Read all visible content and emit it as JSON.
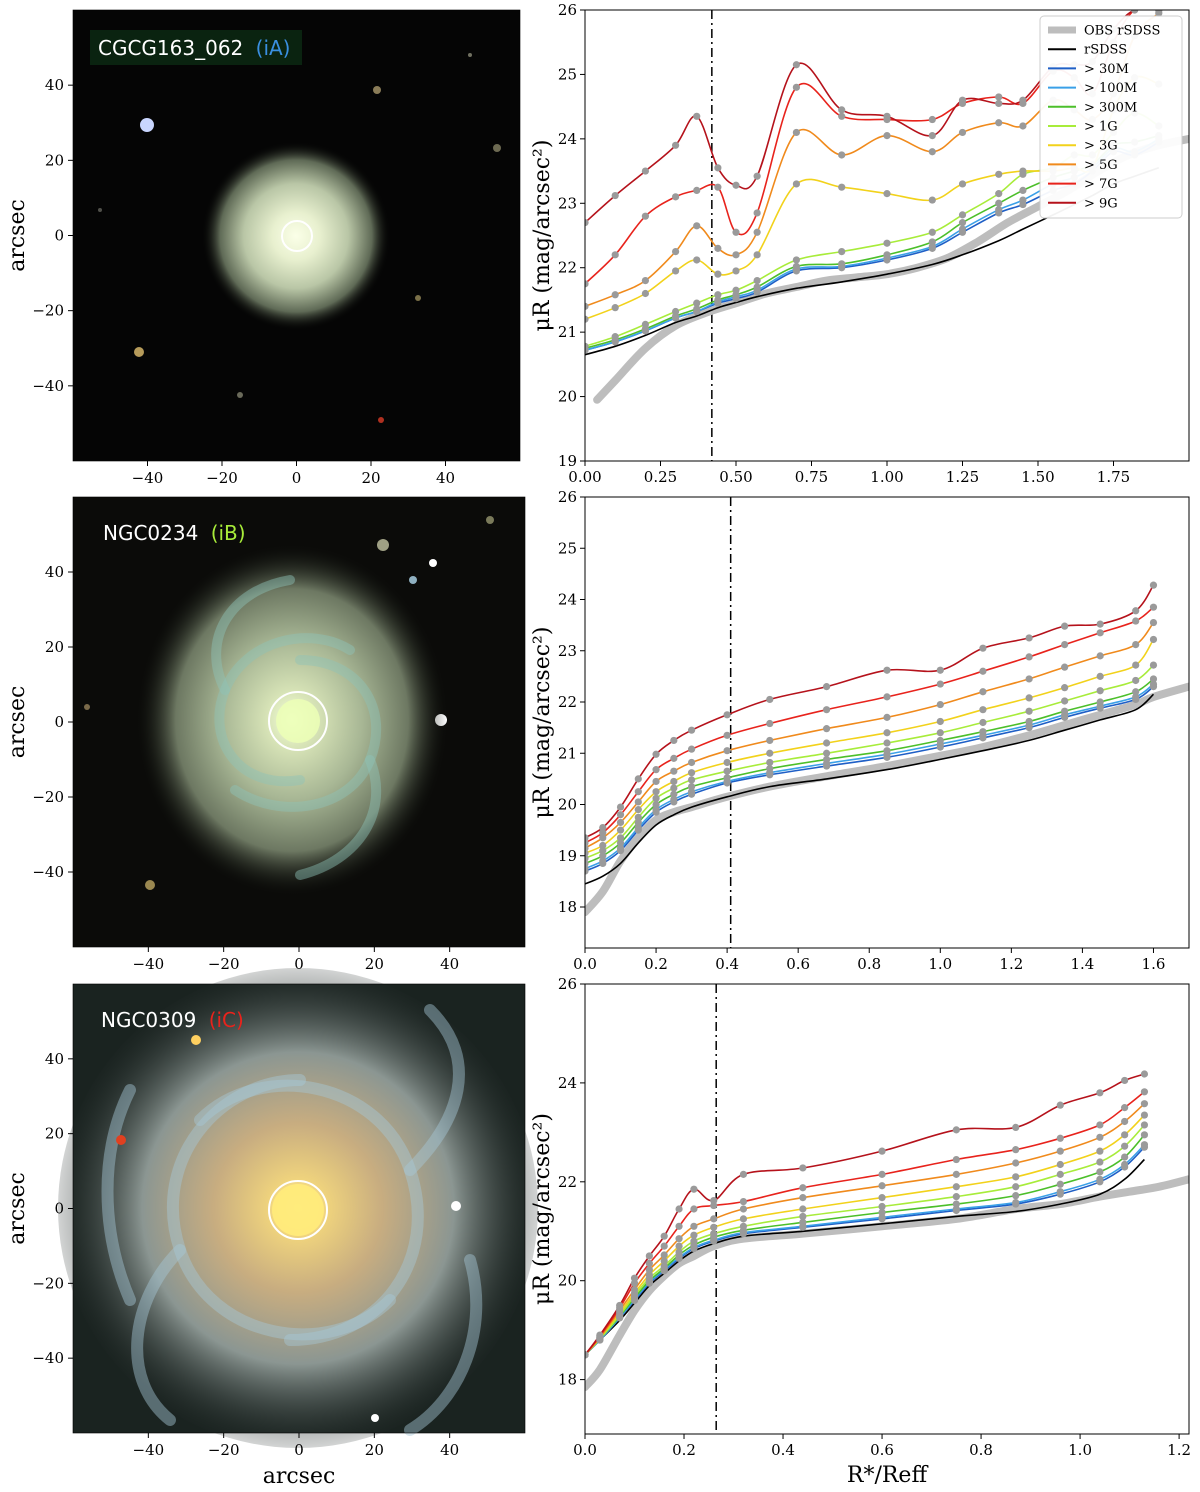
{
  "colors": {
    "obs": "#bdbdbd",
    "rSDSS": "#000000",
    "gt30M": "#1f5fc6",
    "gt100M": "#3aa0e8",
    "gt300M": "#4cbf2a",
    "gt1G": "#a8ec3a",
    "gt3G": "#f2d21b",
    "gt5G": "#f08a1c",
    "gt7G": "#e8231c",
    "gt9G": "#b5121b",
    "marker": "#9a9a9a",
    "vline": "#000000"
  },
  "legend": {
    "entries": [
      {
        "key": "obs",
        "label": "OBS rSDSS"
      },
      {
        "key": "rSDSS",
        "label": "rSDSS"
      },
      {
        "key": "gt30M",
        "label": "> 30M"
      },
      {
        "key": "gt100M",
        "label": "> 100M"
      },
      {
        "key": "gt300M",
        "label": "> 300M"
      },
      {
        "key": "gt1G",
        "label": "> 1G"
      },
      {
        "key": "gt3G",
        "label": "> 3G"
      },
      {
        "key": "gt5G",
        "label": "> 5G"
      },
      {
        "key": "gt7G",
        "label": "> 7G"
      },
      {
        "key": "gt9G",
        "label": "> 9G"
      }
    ]
  },
  "images": [
    {
      "name": "CGCG163_062",
      "tag": "(iA)",
      "tag_color": "#3a8fe0",
      "type": "elliptical",
      "circle_radius_arcsec": 7,
      "xlabel": "",
      "ylabel": "arcsec",
      "ticks": [
        "−40",
        "−20",
        "0",
        "20",
        "40"
      ]
    },
    {
      "name": "NGC0234",
      "tag": "(iB)",
      "tag_color": "#a8ec3a",
      "type": "spiral",
      "circle_radius_arcsec": 15,
      "xlabel": "",
      "ylabel": "arcsec",
      "ticks": [
        "−40",
        "−20",
        "0",
        "20",
        "40"
      ]
    },
    {
      "name": "NGC0309",
      "tag": "(iC)",
      "tag_color": "#e8231c",
      "type": "spiral-bright",
      "circle_radius_arcsec": 15,
      "xlabel": "arcsec",
      "ylabel": "arcsec",
      "ticks": [
        "−40",
        "−20",
        "0",
        "20",
        "40"
      ]
    }
  ],
  "chart_data": [
    {
      "type": "line",
      "xlabel": "",
      "ylabel": "μR (mag/arcsec²)",
      "xlim": [
        0.0,
        2.0
      ],
      "ylim": [
        26,
        19
      ],
      "xticks": [
        "0.00",
        "0.25",
        "0.50",
        "0.75",
        "1.00",
        "1.25",
        "1.50",
        "1.75"
      ],
      "xtick_values": [
        0,
        0.25,
        0.5,
        0.75,
        1.0,
        1.25,
        1.5,
        1.75
      ],
      "yticks": [
        "19",
        "20",
        "21",
        "22",
        "23",
        "24",
        "25",
        "26"
      ],
      "ytick_values": [
        19,
        20,
        21,
        22,
        23,
        24,
        25,
        26
      ],
      "vline_x": 0.42,
      "x": [
        0.0,
        0.1,
        0.2,
        0.3,
        0.37,
        0.44,
        0.5,
        0.57,
        0.7,
        0.85,
        1.0,
        1.15,
        1.25,
        1.37,
        1.45,
        1.55,
        1.62,
        1.68,
        1.75,
        1.82,
        1.9
      ],
      "obs": {
        "x": [
          0.04,
          0.1,
          0.2,
          0.3,
          0.4,
          0.5,
          0.6,
          0.7,
          0.8,
          0.9,
          1.0,
          1.1,
          1.2,
          1.3,
          1.4,
          1.5,
          1.6,
          1.7,
          1.8,
          1.9,
          2.0
        ],
        "y": [
          19.95,
          20.25,
          20.75,
          21.1,
          21.3,
          21.45,
          21.6,
          21.7,
          21.8,
          21.85,
          21.9,
          22.0,
          22.15,
          22.4,
          22.7,
          22.95,
          23.2,
          23.5,
          23.75,
          23.9,
          24.0
        ]
      },
      "series": [
        {
          "key": "rSDSS",
          "y": [
            20.65,
            20.78,
            20.95,
            21.15,
            21.25,
            21.38,
            21.46,
            21.55,
            21.68,
            21.78,
            21.9,
            22.05,
            22.2,
            22.42,
            22.6,
            22.82,
            22.98,
            23.12,
            23.3,
            23.42,
            23.55
          ]
        },
        {
          "key": "gt30M",
          "y": [
            20.72,
            20.85,
            21.02,
            21.22,
            21.32,
            21.45,
            21.52,
            21.62,
            21.95,
            22.0,
            22.12,
            22.3,
            22.55,
            22.85,
            22.98,
            23.2,
            23.3,
            23.5,
            23.8,
            23.75,
            23.95
          ]
        },
        {
          "key": "gt100M",
          "y": [
            20.72,
            20.85,
            21.02,
            21.22,
            21.32,
            21.47,
            21.55,
            21.65,
            21.98,
            22.02,
            22.15,
            22.33,
            22.6,
            22.9,
            23.05,
            23.3,
            23.4,
            23.55,
            23.85,
            23.8,
            24.0
          ]
        },
        {
          "key": "gt300M",
          "y": [
            20.75,
            20.88,
            21.05,
            21.25,
            21.36,
            21.5,
            21.58,
            21.7,
            22.02,
            22.06,
            22.2,
            22.4,
            22.7,
            23.0,
            23.2,
            23.4,
            23.5,
            23.6,
            23.9,
            23.95,
            24.05
          ]
        },
        {
          "key": "gt1G",
          "y": [
            20.78,
            20.93,
            21.12,
            21.32,
            21.45,
            21.58,
            21.65,
            21.8,
            22.12,
            22.25,
            22.38,
            22.55,
            22.82,
            23.15,
            23.45,
            23.55,
            23.75,
            23.75,
            24.1,
            24.4,
            24.2
          ]
        },
        {
          "key": "gt3G",
          "y": [
            21.2,
            21.38,
            21.6,
            21.95,
            22.12,
            21.9,
            21.95,
            22.2,
            23.3,
            23.25,
            23.15,
            23.05,
            23.3,
            23.45,
            23.5,
            23.5,
            23.55,
            23.55,
            24.45,
            24.95,
            24.85
          ]
        },
        {
          "key": "gt5G",
          "y": [
            21.4,
            21.58,
            21.8,
            22.25,
            22.65,
            22.3,
            22.2,
            22.55,
            24.1,
            23.75,
            24.05,
            23.8,
            24.1,
            24.25,
            24.2,
            24.6,
            24.45,
            24.3,
            24.7,
            25.6,
            25.95
          ]
        },
        {
          "key": "gt7G",
          "y": [
            21.75,
            22.2,
            22.8,
            23.1,
            23.2,
            23.25,
            22.55,
            22.85,
            24.8,
            24.35,
            24.3,
            24.3,
            24.55,
            24.65,
            24.55,
            25.05,
            24.95,
            24.7,
            25.5,
            26.0,
            26.0
          ]
        },
        {
          "key": "gt9G",
          "y": [
            22.7,
            23.12,
            23.5,
            23.9,
            24.35,
            23.55,
            23.28,
            23.42,
            25.15,
            24.45,
            24.35,
            24.05,
            24.6,
            24.55,
            24.6,
            25.12,
            25.15,
            25.2,
            25.7,
            26.0,
            26.0
          ]
        }
      ]
    },
    {
      "type": "line",
      "xlabel": "",
      "ylabel": "μR (mag/arcsec²)",
      "xlim": [
        0.0,
        1.7
      ],
      "ylim": [
        26,
        17.2
      ],
      "xticks": [
        "0.0",
        "0.2",
        "0.4",
        "0.6",
        "0.8",
        "1.0",
        "1.2",
        "1.4",
        "1.6"
      ],
      "xtick_values": [
        0,
        0.2,
        0.4,
        0.6,
        0.8,
        1.0,
        1.2,
        1.4,
        1.6
      ],
      "yticks": [
        "18",
        "19",
        "20",
        "21",
        "22",
        "23",
        "24",
        "25",
        "26"
      ],
      "ytick_values": [
        18,
        19,
        20,
        21,
        22,
        23,
        24,
        25,
        26
      ],
      "vline_x": 0.41,
      "x": [
        0.0,
        0.05,
        0.1,
        0.15,
        0.2,
        0.25,
        0.3,
        0.4,
        0.52,
        0.68,
        0.85,
        1.0,
        1.12,
        1.25,
        1.35,
        1.45,
        1.55,
        1.6
      ],
      "obs": {
        "x": [
          0.0,
          0.05,
          0.1,
          0.15,
          0.2,
          0.25,
          0.3,
          0.4,
          0.52,
          0.68,
          0.85,
          1.0,
          1.12,
          1.25,
          1.35,
          1.45,
          1.55,
          1.6,
          1.7
        ],
        "y": [
          17.9,
          18.3,
          18.9,
          19.35,
          19.7,
          19.85,
          19.95,
          20.15,
          20.35,
          20.55,
          20.75,
          20.95,
          21.12,
          21.35,
          21.55,
          21.75,
          21.95,
          22.1,
          22.3
        ]
      },
      "series": [
        {
          "key": "rSDSS",
          "y": [
            18.45,
            18.6,
            18.85,
            19.25,
            19.6,
            19.8,
            19.95,
            20.15,
            20.35,
            20.5,
            20.68,
            20.88,
            21.05,
            21.25,
            21.45,
            21.65,
            21.85,
            22.15
          ]
        },
        {
          "key": "gt30M",
          "y": [
            18.7,
            18.85,
            19.1,
            19.5,
            19.85,
            20.05,
            20.2,
            20.42,
            20.58,
            20.75,
            20.92,
            21.12,
            21.3,
            21.5,
            21.7,
            21.88,
            22.05,
            22.3
          ]
        },
        {
          "key": "gt100M",
          "y": [
            18.75,
            18.9,
            19.15,
            19.55,
            19.9,
            20.1,
            20.25,
            20.45,
            20.62,
            20.8,
            20.98,
            21.18,
            21.35,
            21.55,
            21.75,
            21.92,
            22.1,
            22.35
          ]
        },
        {
          "key": "gt300M",
          "y": [
            18.85,
            19.0,
            19.25,
            19.65,
            20.0,
            20.2,
            20.35,
            20.52,
            20.7,
            20.88,
            21.05,
            21.25,
            21.42,
            21.62,
            21.82,
            22.0,
            22.2,
            22.45
          ]
        },
        {
          "key": "gt1G",
          "y": [
            18.95,
            19.1,
            19.35,
            19.75,
            20.12,
            20.32,
            20.48,
            20.65,
            20.82,
            21.0,
            21.2,
            21.4,
            21.6,
            21.82,
            22.02,
            22.22,
            22.42,
            22.72
          ]
        },
        {
          "key": "gt3G",
          "y": [
            19.05,
            19.2,
            19.5,
            19.9,
            20.25,
            20.45,
            20.62,
            20.82,
            21.0,
            21.2,
            21.4,
            21.62,
            21.85,
            22.08,
            22.28,
            22.5,
            22.72,
            23.22
          ]
        },
        {
          "key": "gt5G",
          "y": [
            19.15,
            19.35,
            19.65,
            20.05,
            20.45,
            20.65,
            20.82,
            21.05,
            21.25,
            21.48,
            21.7,
            21.95,
            22.2,
            22.45,
            22.68,
            22.9,
            23.12,
            23.55
          ]
        },
        {
          "key": "gt7G",
          "y": [
            19.25,
            19.45,
            19.8,
            20.25,
            20.68,
            20.9,
            21.08,
            21.35,
            21.58,
            21.85,
            22.1,
            22.35,
            22.6,
            22.88,
            23.12,
            23.35,
            23.58,
            23.85
          ]
        },
        {
          "key": "gt9G",
          "y": [
            19.35,
            19.55,
            19.95,
            20.5,
            20.98,
            21.25,
            21.45,
            21.75,
            22.05,
            22.3,
            22.62,
            22.62,
            23.05,
            23.25,
            23.48,
            23.52,
            23.78,
            24.28
          ]
        }
      ]
    },
    {
      "type": "line",
      "xlabel": "R*/Reff",
      "ylabel": "μR (mag/arcsec²)",
      "xlim": [
        0.0,
        1.22
      ],
      "ylim": [
        26,
        16.9
      ],
      "xticks": [
        "0.0",
        "0.2",
        "0.4",
        "0.6",
        "0.8",
        "1.0",
        "1.2"
      ],
      "xtick_values": [
        0,
        0.2,
        0.4,
        0.6,
        0.8,
        1.0,
        1.2
      ],
      "yticks": [
        "18",
        "20",
        "22",
        "24",
        "26"
      ],
      "ytick_values": [
        18,
        20,
        22,
        24,
        26
      ],
      "vline_x": 0.265,
      "x": [
        0.0,
        0.03,
        0.07,
        0.1,
        0.13,
        0.16,
        0.19,
        0.22,
        0.26,
        0.32,
        0.44,
        0.6,
        0.75,
        0.87,
        0.96,
        1.04,
        1.09,
        1.13
      ],
      "obs": {
        "x": [
          0.0,
          0.03,
          0.07,
          0.1,
          0.13,
          0.16,
          0.19,
          0.22,
          0.26,
          0.32,
          0.44,
          0.6,
          0.75,
          0.87,
          0.96,
          1.04,
          1.1,
          1.16,
          1.22
        ],
        "y": [
          17.85,
          18.2,
          18.9,
          19.4,
          19.8,
          20.1,
          20.35,
          20.5,
          20.7,
          20.85,
          20.95,
          21.1,
          21.25,
          21.45,
          21.55,
          21.7,
          21.8,
          21.9,
          22.05
        ]
      },
      "series": [
        {
          "key": "rSDSS",
          "y": [
            18.5,
            18.8,
            19.2,
            19.55,
            19.9,
            20.15,
            20.4,
            20.6,
            20.75,
            20.9,
            21.0,
            21.15,
            21.3,
            21.4,
            21.55,
            21.75,
            22.05,
            22.45
          ]
        },
        {
          "key": "gt30M",
          "y": [
            18.5,
            18.8,
            19.25,
            19.6,
            19.95,
            20.2,
            20.45,
            20.65,
            20.8,
            20.95,
            21.08,
            21.25,
            21.42,
            21.55,
            21.75,
            22.0,
            22.3,
            22.7
          ]
        },
        {
          "key": "gt100M",
          "y": [
            18.5,
            18.8,
            19.25,
            19.62,
            19.97,
            20.22,
            20.47,
            20.67,
            20.82,
            20.97,
            21.1,
            21.28,
            21.45,
            21.58,
            21.8,
            22.05,
            22.35,
            22.75
          ]
        },
        {
          "key": "gt300M",
          "y": [
            18.5,
            18.82,
            19.28,
            19.65,
            20.0,
            20.25,
            20.52,
            20.72,
            20.88,
            21.02,
            21.18,
            21.38,
            21.55,
            21.72,
            21.95,
            22.2,
            22.5,
            22.95
          ]
        },
        {
          "key": "gt1G",
          "y": [
            18.5,
            18.82,
            19.3,
            19.7,
            20.05,
            20.3,
            20.58,
            20.8,
            20.95,
            21.1,
            21.3,
            21.5,
            21.7,
            21.9,
            22.15,
            22.4,
            22.72,
            23.15
          ]
        },
        {
          "key": "gt3G",
          "y": [
            18.5,
            18.85,
            19.35,
            19.75,
            20.12,
            20.4,
            20.7,
            20.92,
            21.08,
            21.25,
            21.45,
            21.68,
            21.9,
            22.1,
            22.35,
            22.62,
            22.95,
            23.35
          ]
        },
        {
          "key": "gt5G",
          "y": [
            18.5,
            18.85,
            19.4,
            19.82,
            20.22,
            20.52,
            20.85,
            21.1,
            21.25,
            21.45,
            21.68,
            21.92,
            22.15,
            22.38,
            22.62,
            22.9,
            23.22,
            23.58
          ]
        },
        {
          "key": "gt7G",
          "y": [
            18.5,
            18.88,
            19.45,
            19.95,
            20.35,
            20.7,
            21.1,
            21.45,
            21.52,
            21.6,
            21.88,
            22.15,
            22.45,
            22.65,
            22.88,
            23.15,
            23.5,
            23.82
          ]
        },
        {
          "key": "gt9G",
          "y": [
            18.5,
            18.9,
            19.5,
            20.05,
            20.5,
            20.9,
            21.45,
            21.85,
            21.62,
            22.15,
            22.28,
            22.62,
            23.05,
            23.1,
            23.55,
            23.8,
            24.05,
            24.18
          ]
        }
      ]
    }
  ]
}
